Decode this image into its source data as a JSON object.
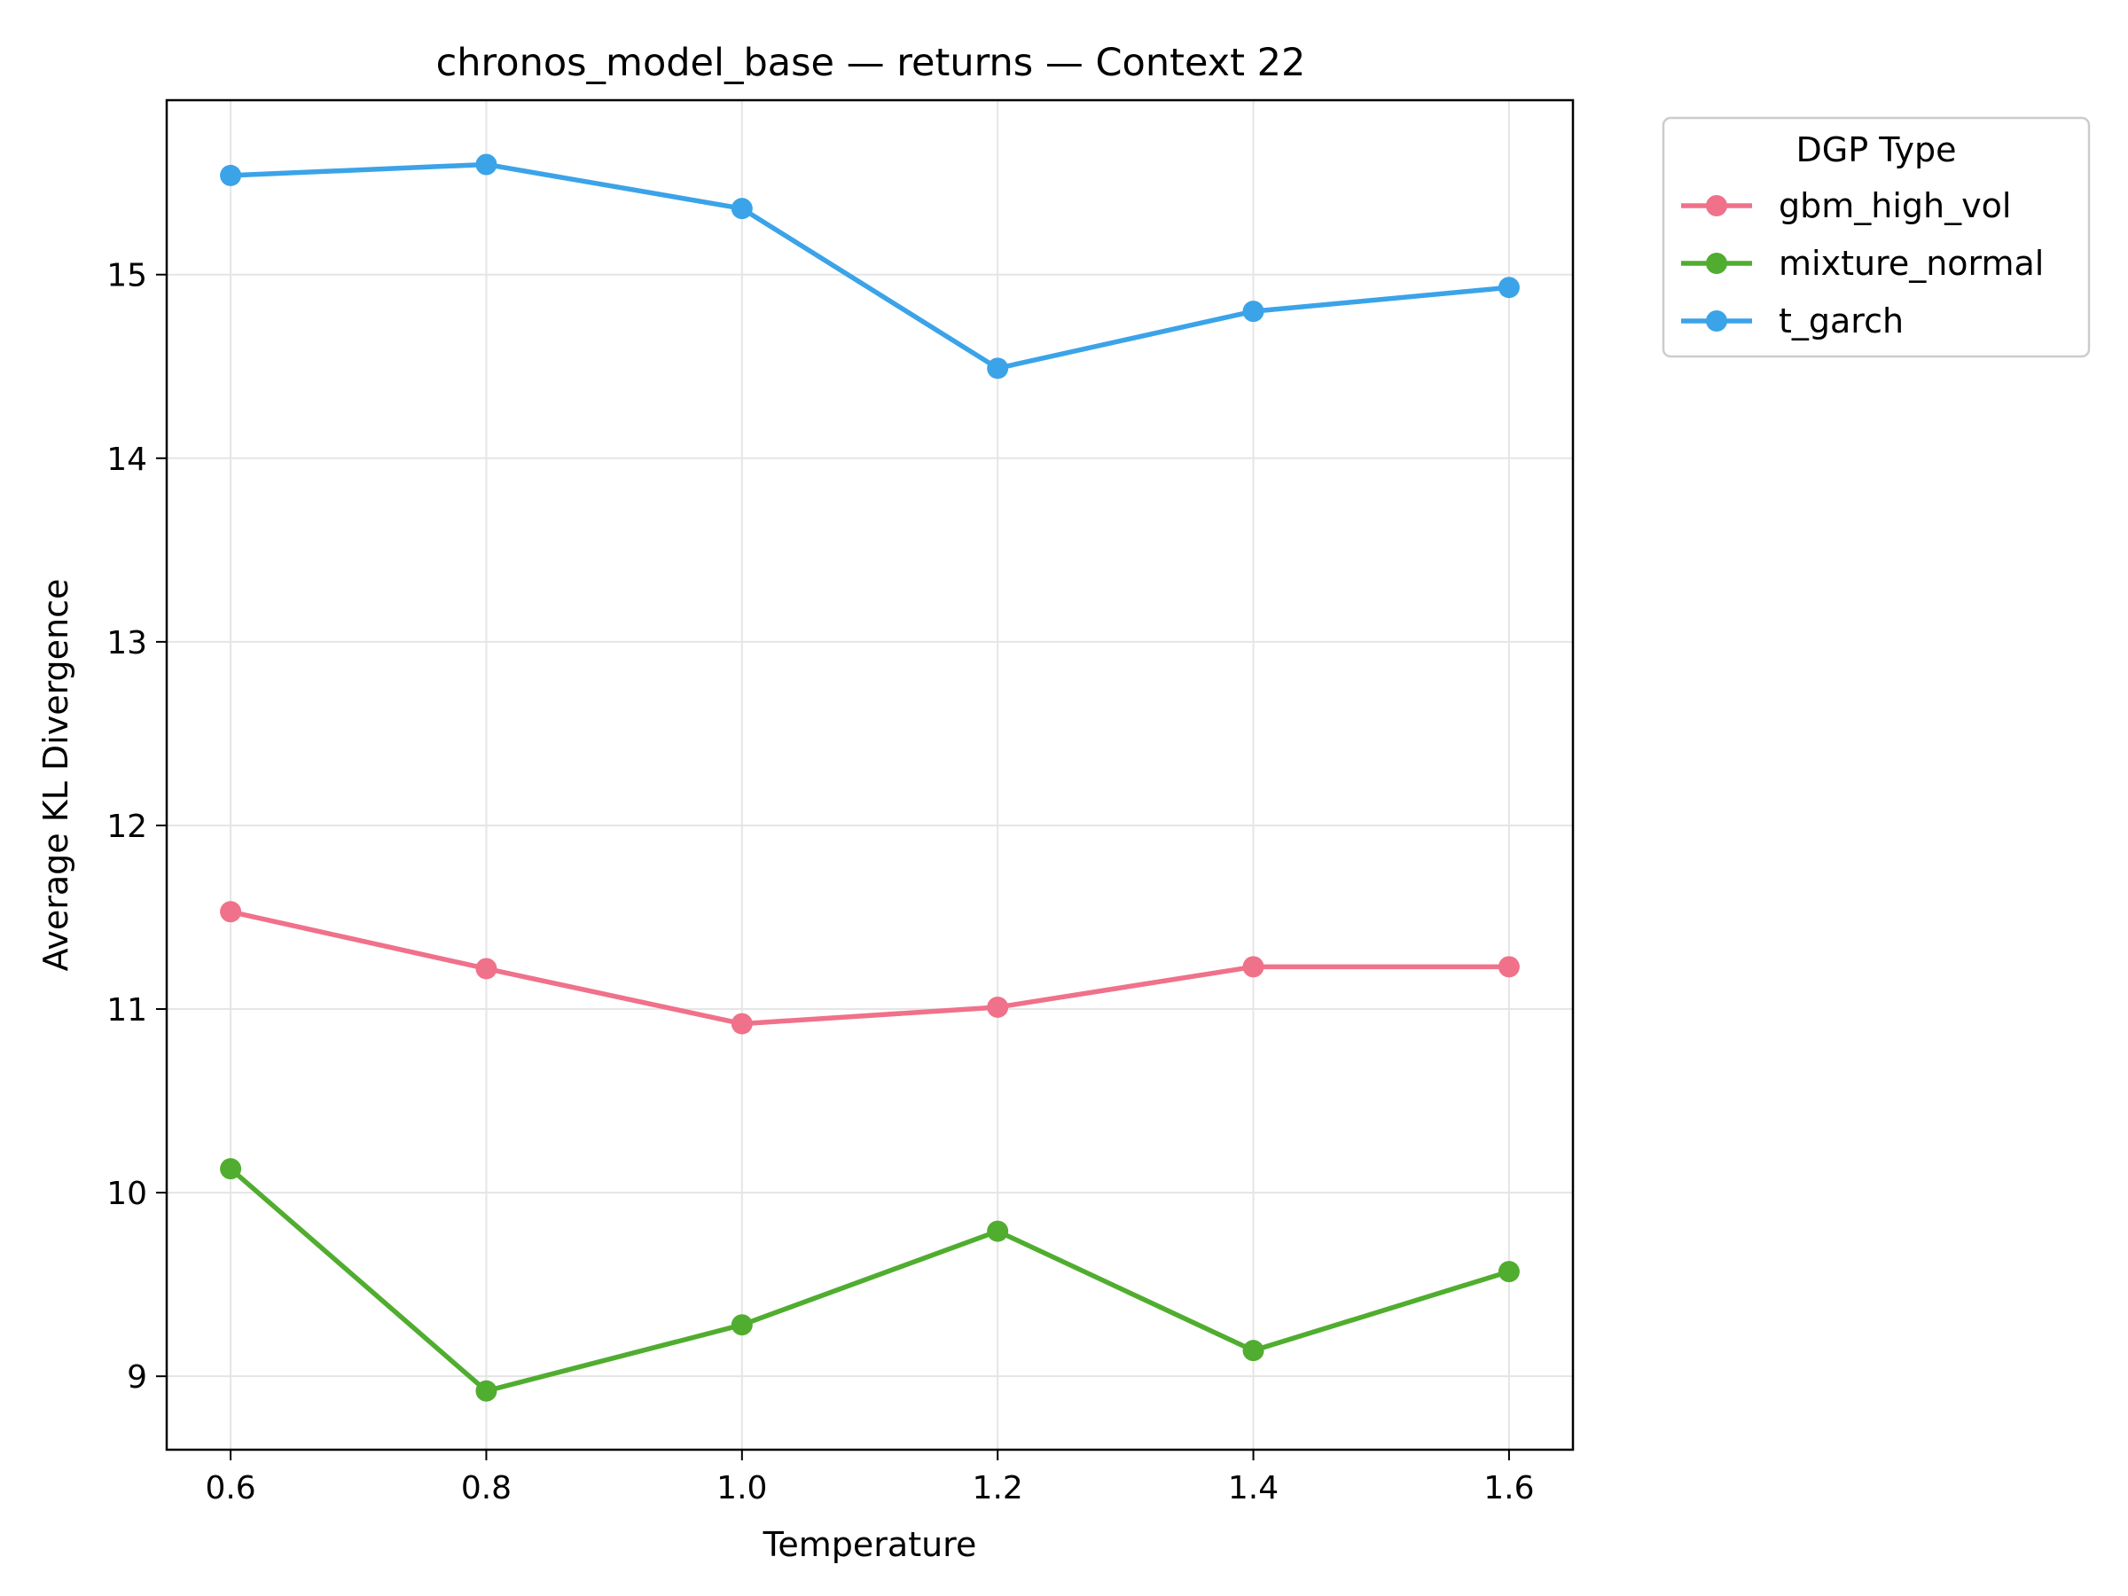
{
  "chart_data": {
    "type": "line",
    "title": "chronos_model_base — returns — Context 22",
    "xlabel": "Temperature",
    "ylabel": "Average KL Divergence",
    "x": [
      0.6,
      0.8,
      1.0,
      1.2,
      1.4,
      1.6
    ],
    "x_tick_labels": [
      "0.6",
      "0.8",
      "1.0",
      "1.2",
      "1.4",
      "1.6"
    ],
    "y_ticks": [
      9,
      10,
      11,
      12,
      13,
      14,
      15
    ],
    "y_tick_labels": [
      "9",
      "10",
      "11",
      "12",
      "13",
      "14",
      "15"
    ],
    "xlim": [
      0.55,
      1.65
    ],
    "ylim": [
      8.6,
      15.95
    ],
    "grid": true,
    "legend": {
      "title": "DGP Type",
      "placement": "outside-top-right"
    },
    "series": [
      {
        "name": "gbm_high_vol",
        "color": "#f0718a",
        "values": [
          11.53,
          11.22,
          10.92,
          11.01,
          11.23,
          11.23
        ]
      },
      {
        "name": "mixture_normal",
        "color": "#50ad2f",
        "values": [
          10.13,
          8.92,
          9.28,
          9.79,
          9.14,
          9.57
        ]
      },
      {
        "name": "t_garch",
        "color": "#3ba3e8",
        "values": [
          15.54,
          15.6,
          15.36,
          14.49,
          14.8,
          14.93
        ]
      }
    ]
  }
}
